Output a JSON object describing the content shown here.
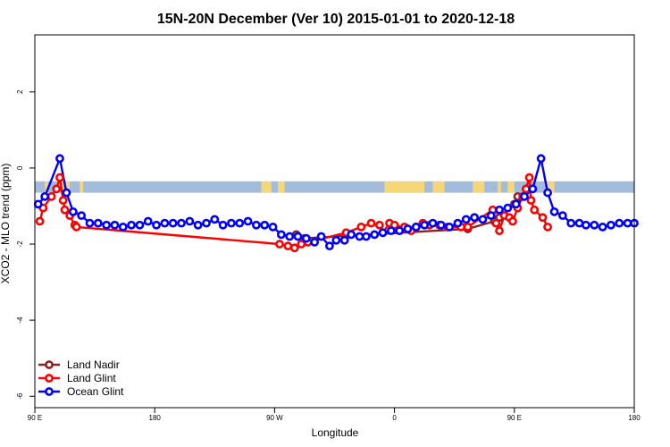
{
  "chart_data": {
    "type": "line",
    "title": "15N-20N December (Ver 10)   2015-01-01 to 2020-12-18",
    "xlabel": "Longitude",
    "ylabel": "XCO2 - MLO trend (ppm)",
    "xlim": [
      90,
      450
    ],
    "ylim": [
      -6.3,
      3.5
    ],
    "x_ticks": [
      {
        "v": 90,
        "label": "90 E"
      },
      {
        "v": 162,
        "label": "180"
      },
      {
        "v": 234,
        "label": "90 W"
      },
      {
        "v": 306,
        "label": "0"
      },
      {
        "v": 378,
        "label": "90 E"
      },
      {
        "v": 450,
        "label": "180"
      }
    ],
    "y_ticks": [
      {
        "v": 2,
        "label": "2"
      },
      {
        "v": 0,
        "label": "0"
      },
      {
        "v": -2,
        "label": "-2"
      },
      {
        "v": -4,
        "label": "-4"
      },
      {
        "v": -6,
        "label": "-6"
      }
    ],
    "grid": false,
    "legend_position": "bottom-left",
    "inset_band": {
      "description": "land-sea mask strip (blue = ocean, tan = land)",
      "y_range": [
        -0.65,
        -0.35
      ],
      "ocean_color": "#a3bcdc",
      "land_color": "#f5d77a",
      "land_segments": [
        [
          96,
          98
        ],
        [
          106,
          111
        ],
        [
          117,
          119
        ],
        [
          226,
          228
        ],
        [
          228,
          232
        ],
        [
          236,
          240
        ],
        [
          300,
          324
        ],
        [
          329,
          336
        ],
        [
          353,
          360
        ],
        [
          368,
          370
        ],
        [
          374,
          378
        ],
        [
          386,
          388
        ],
        [
          397,
          402
        ]
      ]
    },
    "series": [
      {
        "name": "Land Nadir",
        "color": "#8b2323",
        "points": [
          [
            247,
            -1.75
          ],
          [
            252,
            -1.85
          ],
          [
            350,
            -1.6
          ],
          [
            366,
            -1.4
          ],
          [
            369,
            -1.3
          ],
          [
            378,
            -0.95
          ],
          [
            380,
            -0.75
          ]
        ]
      },
      {
        "name": "Land Glint",
        "color": "#ff0000",
        "points": [
          [
            93,
            -1.4
          ],
          [
            95,
            -1.05
          ],
          [
            100,
            -0.75
          ],
          [
            103,
            -0.55
          ],
          [
            105,
            -0.25
          ],
          [
            107,
            -0.85
          ],
          [
            108,
            -1.1
          ],
          [
            111,
            -1.25
          ],
          [
            114,
            -1.5
          ],
          [
            115,
            -1.55
          ],
          [
            237,
            -2.0
          ],
          [
            242,
            -2.05
          ],
          [
            246,
            -2.1
          ],
          [
            250,
            -2.0
          ],
          [
            254,
            -1.95
          ],
          [
            277,
            -1.7
          ],
          [
            286,
            -1.55
          ],
          [
            292,
            -1.45
          ],
          [
            297,
            -1.5
          ],
          [
            299,
            -1.7
          ],
          [
            303,
            -1.45
          ],
          [
            306,
            -1.5
          ],
          [
            312,
            -1.55
          ],
          [
            316,
            -1.65
          ],
          [
            319,
            -1.55
          ],
          [
            323,
            -1.45
          ],
          [
            327,
            -1.5
          ],
          [
            333,
            -1.5
          ],
          [
            338,
            -1.55
          ],
          [
            346,
            -1.55
          ],
          [
            350,
            -1.55
          ],
          [
            365,
            -1.1
          ],
          [
            367,
            -1.45
          ],
          [
            369,
            -1.65
          ],
          [
            372,
            -1.25
          ],
          [
            375,
            -1.3
          ],
          [
            377,
            -1.4
          ],
          [
            380,
            -1.05
          ],
          [
            383,
            -0.75
          ],
          [
            385,
            -0.55
          ],
          [
            387,
            -0.25
          ],
          [
            388,
            -0.85
          ],
          [
            390,
            -1.1
          ],
          [
            395,
            -1.3
          ],
          [
            398,
            -1.55
          ]
        ]
      },
      {
        "name": "Ocean Glint",
        "color": "#0000ff",
        "points": [
          [
            92,
            -0.95
          ],
          [
            96,
            -0.75
          ],
          [
            105,
            0.25
          ],
          [
            109,
            -0.65
          ],
          [
            113,
            -1.15
          ],
          [
            118,
            -1.25
          ],
          [
            123,
            -1.45
          ],
          [
            128,
            -1.45
          ],
          [
            133,
            -1.5
          ],
          [
            138,
            -1.5
          ],
          [
            143,
            -1.55
          ],
          [
            148,
            -1.5
          ],
          [
            153,
            -1.5
          ],
          [
            158,
            -1.4
          ],
          [
            163,
            -1.5
          ],
          [
            168,
            -1.45
          ],
          [
            173,
            -1.45
          ],
          [
            178,
            -1.45
          ],
          [
            183,
            -1.4
          ],
          [
            188,
            -1.5
          ],
          [
            193,
            -1.45
          ],
          [
            198,
            -1.35
          ],
          [
            203,
            -1.5
          ],
          [
            208,
            -1.45
          ],
          [
            213,
            -1.45
          ],
          [
            218,
            -1.4
          ],
          [
            223,
            -1.5
          ],
          [
            228,
            -1.5
          ],
          [
            233,
            -1.55
          ],
          [
            238,
            -1.75
          ],
          [
            243,
            -1.8
          ],
          [
            248,
            -1.8
          ],
          [
            253,
            -1.85
          ],
          [
            258,
            -1.95
          ],
          [
            262,
            -1.8
          ],
          [
            267,
            -2.05
          ],
          [
            271,
            -1.9
          ],
          [
            276,
            -1.9
          ],
          [
            280,
            -1.75
          ],
          [
            285,
            -1.8
          ],
          [
            289,
            -1.8
          ],
          [
            294,
            -1.75
          ],
          [
            299,
            -1.7
          ],
          [
            304,
            -1.65
          ],
          [
            309,
            -1.65
          ],
          [
            314,
            -1.6
          ],
          [
            319,
            -1.55
          ],
          [
            324,
            -1.5
          ],
          [
            329,
            -1.45
          ],
          [
            334,
            -1.5
          ],
          [
            339,
            -1.55
          ],
          [
            344,
            -1.45
          ],
          [
            349,
            -1.35
          ],
          [
            354,
            -1.3
          ],
          [
            359,
            -1.35
          ],
          [
            364,
            -1.25
          ],
          [
            369,
            -1.1
          ],
          [
            374,
            -1.05
          ],
          [
            379,
            -0.95
          ],
          [
            384,
            -0.75
          ],
          [
            389,
            -0.55
          ],
          [
            394,
            0.25
          ],
          [
            398,
            -0.65
          ],
          [
            402,
            -1.15
          ],
          [
            407,
            -1.25
          ],
          [
            412,
            -1.45
          ],
          [
            417,
            -1.45
          ],
          [
            421,
            -1.5
          ],
          [
            426,
            -1.5
          ],
          [
            431,
            -1.55
          ],
          [
            436,
            -1.5
          ],
          [
            441,
            -1.45
          ],
          [
            446,
            -1.45
          ],
          [
            450,
            -1.45
          ]
        ]
      }
    ]
  }
}
